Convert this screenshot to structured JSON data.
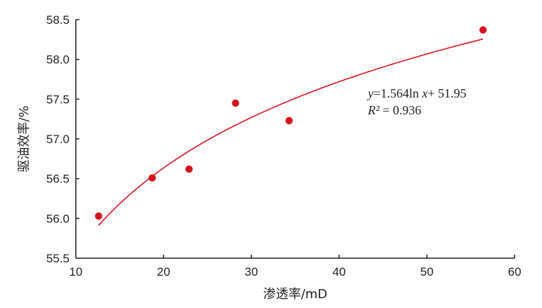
{
  "chart_data": {
    "type": "scatter",
    "xlabel": "渗透率/mD",
    "ylabel": "驱油效率/%",
    "xlim": [
      10,
      60
    ],
    "ylim": [
      55.5,
      58.5
    ],
    "x_ticks": [
      "10",
      "20",
      "30",
      "40",
      "50",
      "60"
    ],
    "y_ticks": [
      "55.5",
      "56.0",
      "56.5",
      "57.0",
      "57.5",
      "58.0",
      "58.5"
    ],
    "grid": false,
    "series": [
      {
        "kind": "points",
        "x": [
          12.6,
          18.7,
          22.9,
          28.2,
          34.3,
          56.4
        ],
        "y": [
          56.03,
          56.51,
          56.62,
          57.45,
          57.23,
          58.37
        ]
      },
      {
        "kind": "fit",
        "model": "log",
        "a": 1.564,
        "b": 51.95,
        "x_range": [
          12.6,
          56.4
        ]
      }
    ],
    "annotation": {
      "equation": "y=1.564ln x+ 51.95",
      "r2_symbol": "R²",
      "r2_value": "= 0.936"
    },
    "colors": {
      "points": "#d7141e",
      "fit": "#d7141e",
      "axis": "#231f20"
    }
  }
}
